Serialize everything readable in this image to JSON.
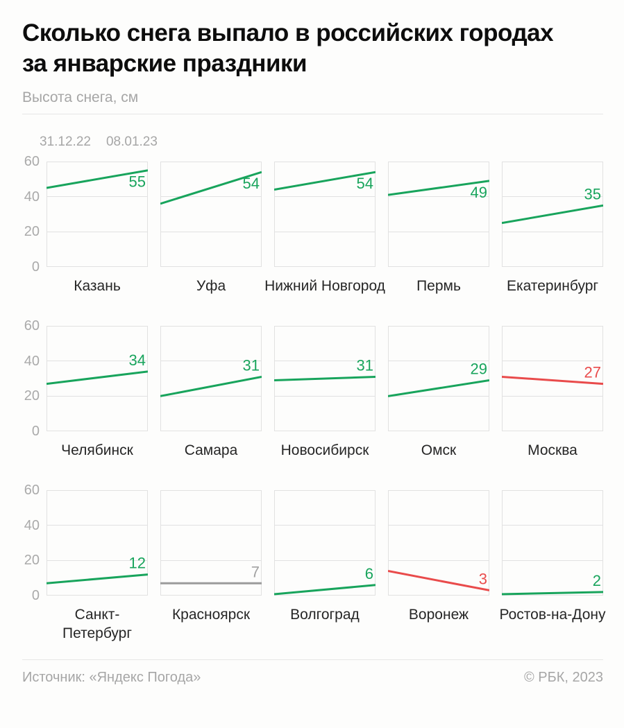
{
  "header": {
    "title_lines": [
      "Сколько снега выпало в российских городах",
      "за январские праздники"
    ],
    "subtitle": "Высота снега, см"
  },
  "legend": {
    "labels": [
      "31.12.22",
      "08.01.23"
    ]
  },
  "footer": {
    "source": "Источник: «Яндекс Погода»",
    "copyright": "© РБК, 2023"
  },
  "colors": {
    "increase": "#18A45C",
    "decrease": "#E94B4B",
    "neutral": "#9B9B9B",
    "neutral_label": "#A2A2A2",
    "grid": "#E1E1E1",
    "background": "#FDFDFC"
  },
  "chart_data": {
    "type": "line",
    "title": "Сколько снега выпало в российских городах за январские праздники",
    "ylabel": "Высота снега, см",
    "x": [
      "31.12.22",
      "08.01.23"
    ],
    "ylim": [
      0,
      60
    ],
    "yticks": [
      0,
      20,
      40,
      60
    ],
    "grid": true,
    "layout": "small-multiples, 3 rows x 5 columns, y-axis labels on left of each row, end-value labeled",
    "series": [
      {
        "name": "Казань",
        "values": [
          45,
          55
        ],
        "end_label": "55",
        "trend": "up"
      },
      {
        "name": "Уфа",
        "values": [
          36,
          54
        ],
        "end_label": "54",
        "trend": "up"
      },
      {
        "name": "Нижний Новгород",
        "values": [
          44,
          54
        ],
        "end_label": "54",
        "trend": "up"
      },
      {
        "name": "Пермь",
        "values": [
          41,
          49
        ],
        "end_label": "49",
        "trend": "up"
      },
      {
        "name": "Екатеринбург",
        "values": [
          25,
          35
        ],
        "end_label": "35",
        "trend": "up"
      },
      {
        "name": "Челябинск",
        "values": [
          27,
          34
        ],
        "end_label": "34",
        "trend": "up"
      },
      {
        "name": "Самара",
        "values": [
          20,
          31
        ],
        "end_label": "31",
        "trend": "up"
      },
      {
        "name": "Новосибирск",
        "values": [
          29,
          31
        ],
        "end_label": "31",
        "trend": "up"
      },
      {
        "name": "Омск",
        "values": [
          20,
          29
        ],
        "end_label": "29",
        "trend": "up"
      },
      {
        "name": "Москва",
        "values": [
          31,
          27
        ],
        "end_label": "27",
        "trend": "down"
      },
      {
        "name": "Санкт-Петербург",
        "label_lines": [
          "Санкт-",
          "Петербург"
        ],
        "values": [
          7,
          12
        ],
        "end_label": "12",
        "trend": "up"
      },
      {
        "name": "Красноярск",
        "values": [
          7,
          7
        ],
        "end_label": "7",
        "trend": "flat"
      },
      {
        "name": "Волгоград",
        "values": [
          0,
          6
        ],
        "end_label": "6",
        "trend": "up"
      },
      {
        "name": "Воронеж",
        "values": [
          14,
          3
        ],
        "end_label": "3",
        "trend": "down"
      },
      {
        "name": "Ростов-на-Дону",
        "values": [
          0,
          2
        ],
        "end_label": "2",
        "trend": "up"
      }
    ]
  }
}
